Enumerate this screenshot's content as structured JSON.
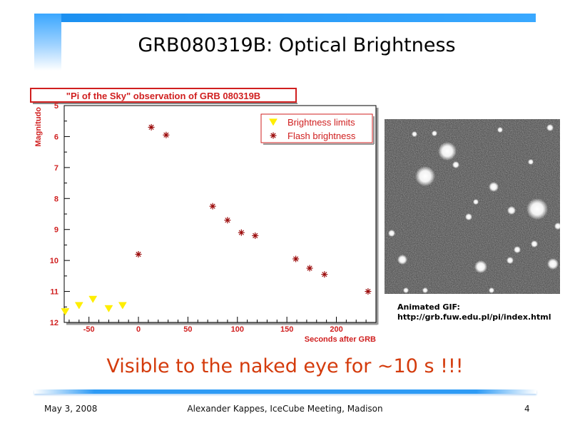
{
  "slide": {
    "title": "GRB080319B: Optical Brightness",
    "headline": "Visible to the naked eye for ~10 s !!!",
    "image_caption_line1": "Animated GIF:",
    "image_caption_line2": "http://grb.fuw.edu.pl/pi/index.html",
    "footer_date": "May 3, 2008",
    "footer_author": "Alexander Kappes, IceCube Meeting, Madison",
    "footer_page": "4",
    "accent_color": "#2e9bf5",
    "headline_color": "#d43b0c"
  },
  "chart_data": {
    "type": "scatter",
    "title": "\"Pi of the Sky\" observation of GRB 080319B",
    "xlabel": "Seconds after GRB",
    "ylabel": "Magnitudo",
    "xlim": [
      -75,
      240
    ],
    "ylim": [
      12,
      5
    ],
    "y_inverted": true,
    "xticks": [
      -50,
      0,
      50,
      100,
      150,
      200
    ],
    "yticks": [
      5,
      6,
      7,
      8,
      9,
      10,
      11,
      12
    ],
    "legend_position": "top-right",
    "series": [
      {
        "name": "Brightness limits",
        "marker": "triangle-down",
        "color": "#ffee00",
        "x": [
          -74,
          -60,
          -46,
          -30,
          -16
        ],
        "y": [
          11.65,
          11.45,
          11.25,
          11.55,
          11.45
        ]
      },
      {
        "name": "Flash brightness",
        "marker": "asterisk",
        "color": "#9b0a0a",
        "x": [
          0,
          13,
          28,
          75,
          90,
          104,
          118,
          159,
          173,
          188,
          232
        ],
        "y": [
          9.8,
          5.7,
          5.95,
          8.25,
          8.7,
          9.1,
          9.2,
          9.95,
          10.25,
          10.45,
          11.0
        ]
      }
    ]
  }
}
